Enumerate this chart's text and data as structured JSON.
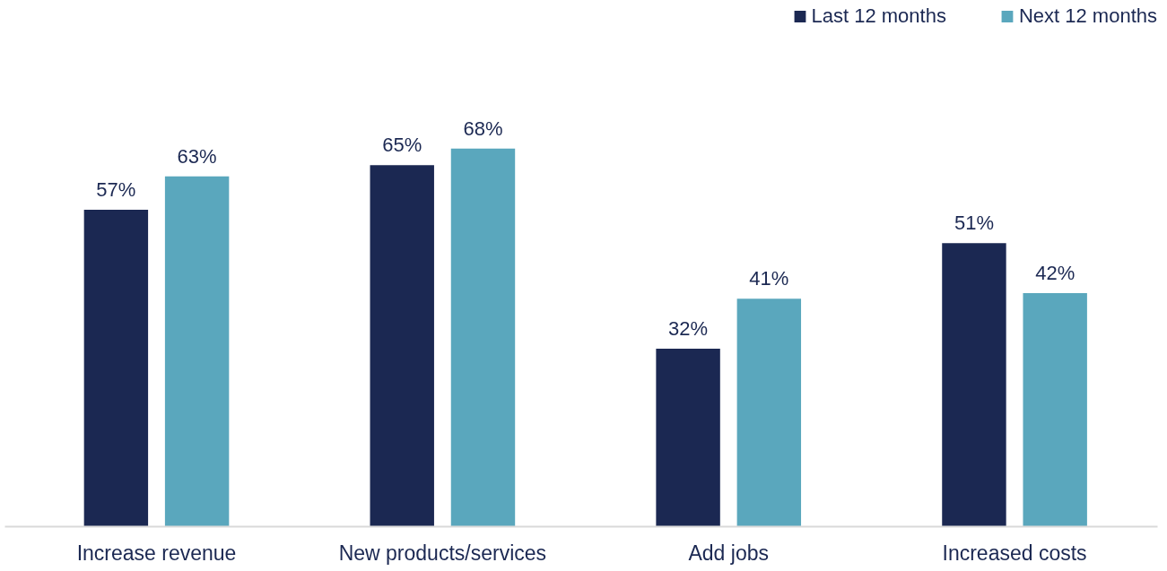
{
  "chart_data": {
    "type": "bar",
    "categories": [
      "Increase revenue",
      "New products/services",
      "Add jobs",
      "Increased costs"
    ],
    "series": [
      {
        "name": "Last 12 months",
        "color": "#1b2852",
        "values": [
          57,
          65,
          32,
          51
        ],
        "value_labels": [
          "57%",
          "65%",
          "32%",
          "51%"
        ]
      },
      {
        "name": "Next 12 months",
        "color": "#5aa7bd",
        "values": [
          63,
          68,
          41,
          42
        ],
        "value_labels": [
          "63%",
          "68%",
          "41%",
          "42%"
        ]
      }
    ],
    "legend": "top right",
    "grid": false,
    "tick_labels": "x"
  }
}
